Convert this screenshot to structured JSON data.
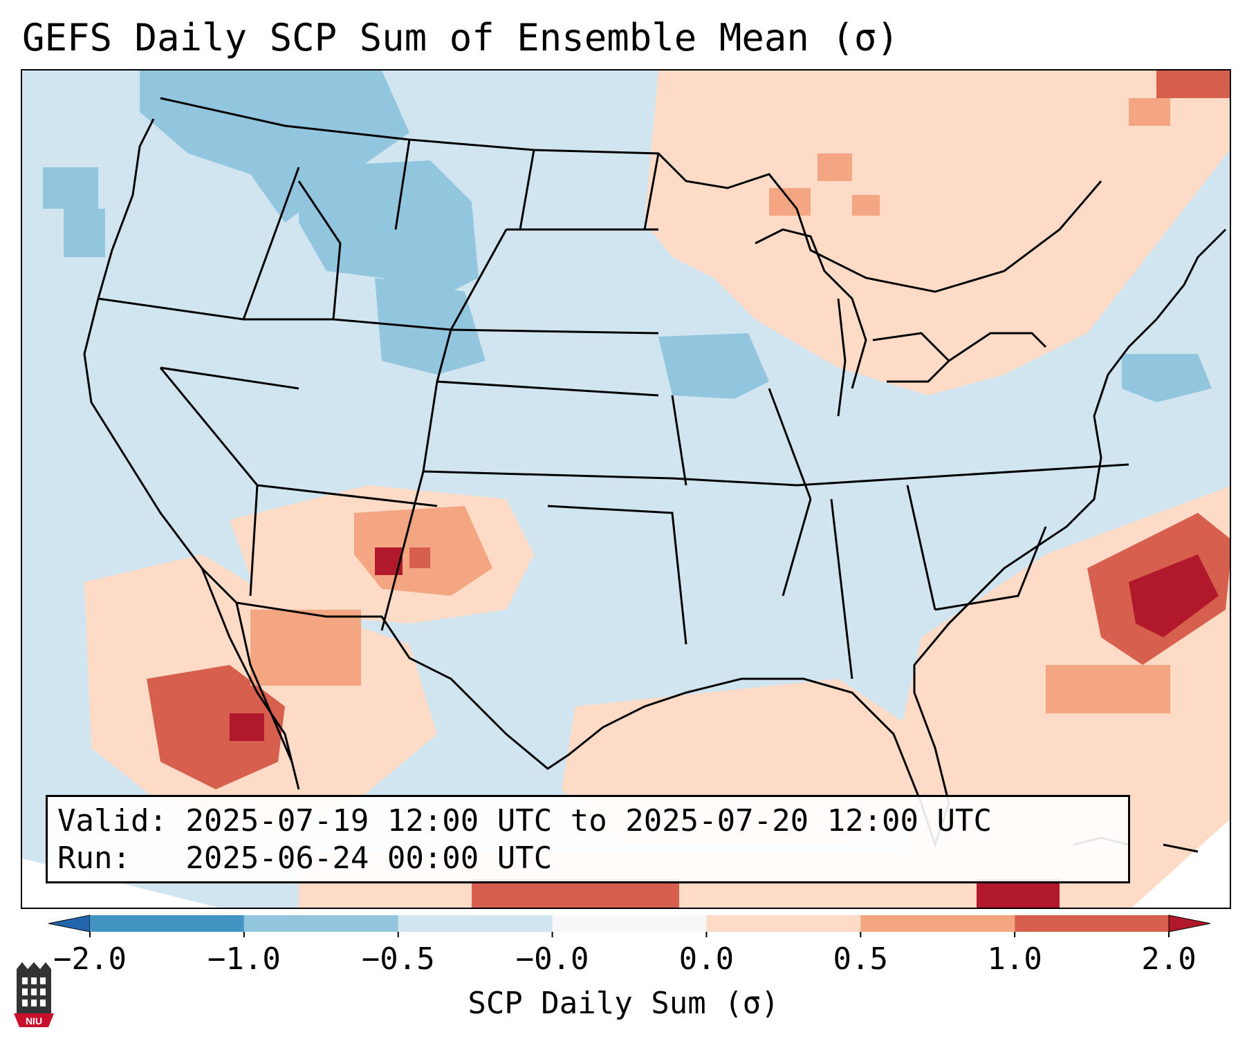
{
  "title": "GEFS Daily SCP Sum of Ensemble Mean (σ)",
  "info": {
    "valid_line": "Valid: 2025-07-19 12:00 UTC to 2025-07-20 12:00 UTC",
    "run_line": "Run:   2025-06-24 00:00 UTC"
  },
  "colorbar": {
    "label": "SCP Daily Sum (σ)",
    "ticks": [
      "−2.0",
      "−1.0",
      "−0.5",
      "−0.0",
      "0.0",
      "0.5",
      "1.0",
      "2.0"
    ],
    "colors": [
      "#2166ac",
      "#4393c3",
      "#92c5de",
      "#d1e5f0",
      "#f7f7f7",
      "#fddbc7",
      "#f4a582",
      "#d6604d",
      "#b2182b"
    ]
  },
  "logo": {
    "text": "NIU",
    "color": "#c8102e"
  },
  "chart_data": {
    "type": "heatmap",
    "title": "GEFS Daily SCP Sum of Ensemble Mean (σ)",
    "colorbar_label": "SCP Daily Sum (σ)",
    "color_levels": [
      -2.0,
      -1.0,
      -0.5,
      -0.0,
      0.0,
      0.5,
      1.0,
      2.0
    ],
    "regions": [
      {
        "name": "Pacific Northwest / Montana",
        "level": "-1.0 to -0.5"
      },
      {
        "name": "Wyoming / Iowa",
        "level": "-1.0 to -0.5"
      },
      {
        "name": "Western Atlantic off New England",
        "level": "-1.0 to -0.5"
      },
      {
        "name": "Central and eastern CONUS",
        "level": "-0.5 to 0.0"
      },
      {
        "name": "Canadian Prairies / Quebec",
        "level": "0.0 to 0.5"
      },
      {
        "name": "New Mexico / Arizona",
        "level": "0.5 to 2.0"
      },
      {
        "name": "Gulf of Mexico",
        "level": "0.0 to 1.0"
      },
      {
        "name": "Western Mexico / Gulf of California",
        "level": "0.5 to 2.0"
      },
      {
        "name": "Western Atlantic off the Carolinas",
        "level": "0.5 to >2.0"
      },
      {
        "name": "Caribbean",
        "level": "0.5 to 2.0"
      }
    ]
  }
}
